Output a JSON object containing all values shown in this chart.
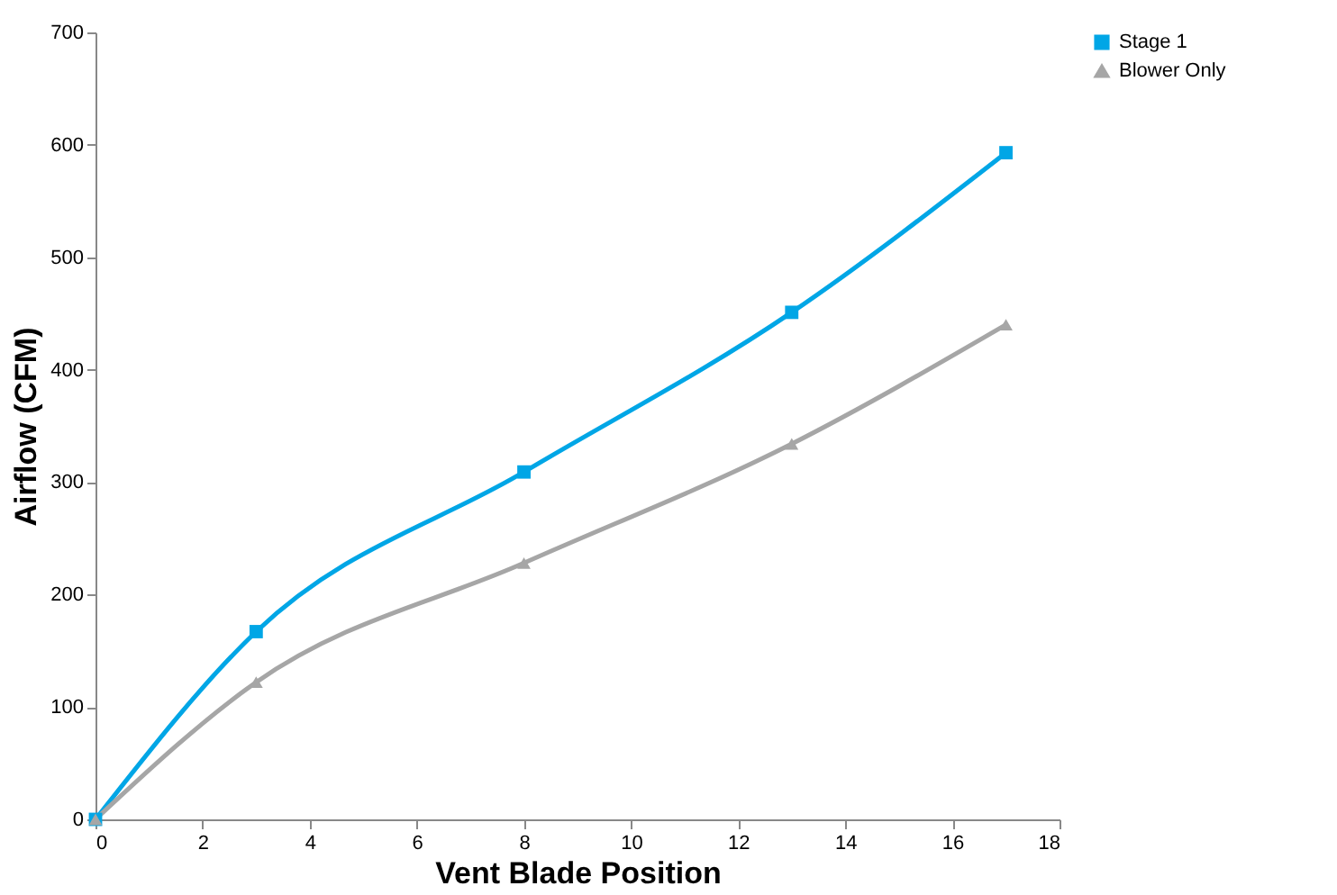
{
  "chart_data": {
    "type": "line",
    "xlabel": "Vent Blade Position",
    "ylabel": "Airflow (CFM)",
    "x": [
      0,
      3,
      8,
      13,
      17
    ],
    "series": [
      {
        "name": "Stage 1",
        "color": "#00a6e6",
        "marker": "square",
        "values": [
          0,
          167,
          309,
          451,
          593
        ]
      },
      {
        "name": "Blower Only",
        "color": "#a6a6a6",
        "marker": "triangle",
        "values": [
          0,
          122,
          228,
          334,
          440
        ]
      }
    ],
    "xlim": [
      0,
      18
    ],
    "xticks": [
      0,
      2,
      4,
      6,
      8,
      10,
      12,
      14,
      16,
      18
    ],
    "ylim": [
      0,
      700
    ],
    "yticks": [
      0,
      100,
      200,
      300,
      400,
      500,
      600,
      700
    ],
    "grid": false,
    "legend": "right",
    "line_style": "solid"
  }
}
